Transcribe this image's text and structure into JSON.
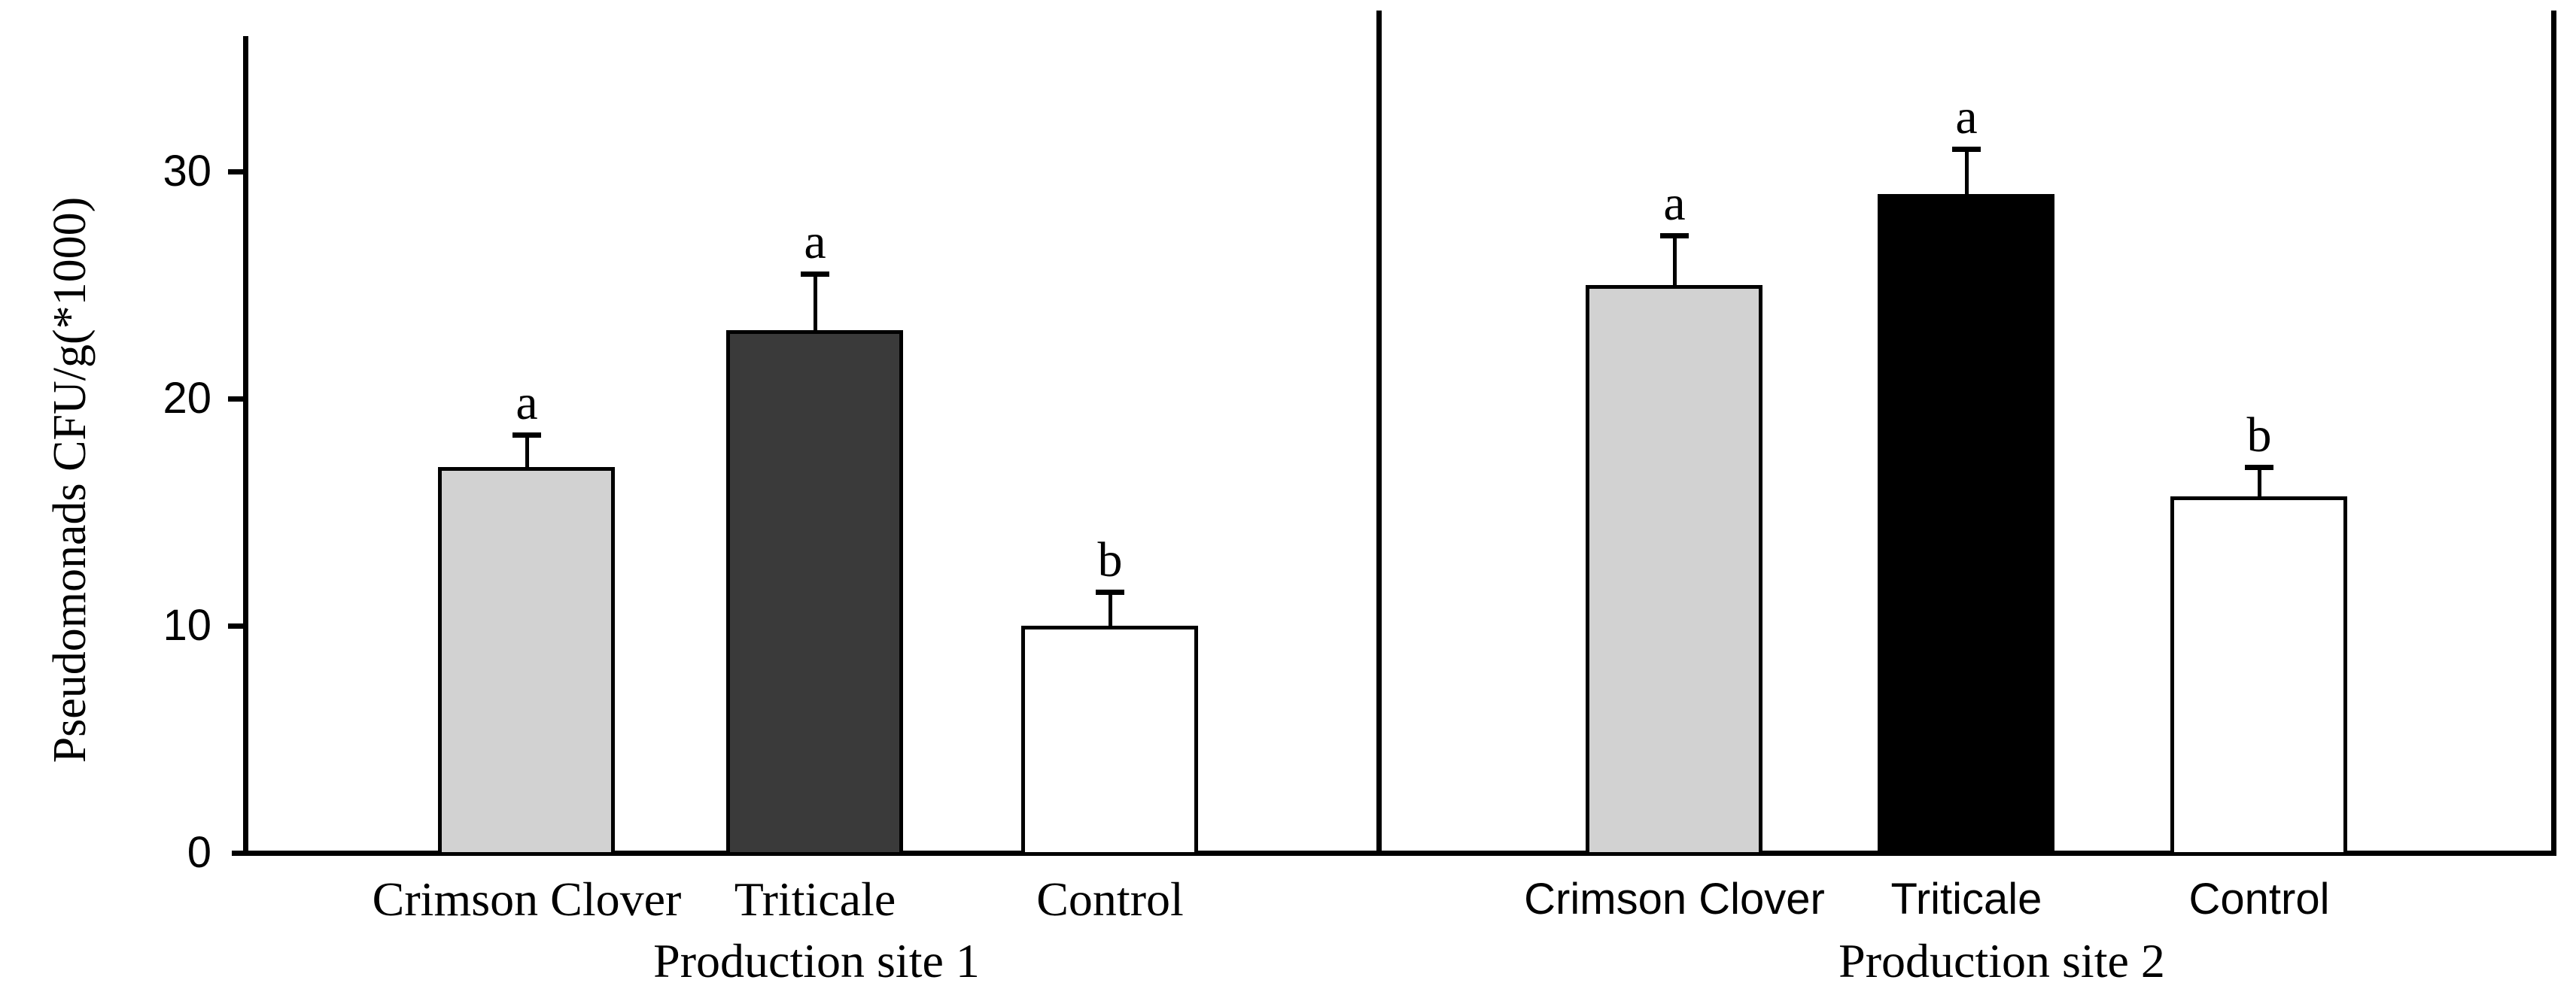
{
  "figure": {
    "background": "#ffffff",
    "axis_color": "#000000",
    "bar_outline_color": "#000000"
  },
  "chart_data": {
    "type": "bar",
    "title": "",
    "ylabel": "Pseudomonads CFU/g(*1000)",
    "ylim": [
      0,
      36
    ],
    "yticks": [
      0,
      10,
      20,
      30
    ],
    "grid": false,
    "legend_position": "none",
    "error_bars": "plus_direction_only",
    "panels": [
      {
        "xlabel": "Production site 1",
        "categories": [
          "Crimson Clover",
          "Triticale",
          "Control"
        ],
        "series": [
          {
            "name": "Pseudomonads CFU/g(*1000)",
            "values": [
              17,
              23,
              10
            ]
          }
        ],
        "error_plus": [
          1.4,
          2.5,
          1.5
        ],
        "sig_letters": [
          "a",
          "a",
          "b"
        ],
        "bar_fill_colors": [
          "#d2d2d2",
          "#3a3a3a",
          "#ffffff"
        ],
        "category_label_font": "serif"
      },
      {
        "xlabel": "Production site 2",
        "categories": [
          "Crimson Clover",
          "Triticale",
          "Control"
        ],
        "series": [
          {
            "name": "Pseudomonads CFU/g(*1000)",
            "values": [
              25,
              29,
              15.7
            ]
          }
        ],
        "error_plus": [
          2.2,
          2.0,
          1.3
        ],
        "sig_letters": [
          "a",
          "a",
          "b"
        ],
        "bar_fill_colors": [
          "#d2d2d2",
          "#000000",
          "#ffffff"
        ],
        "category_label_font": "sans"
      }
    ]
  }
}
